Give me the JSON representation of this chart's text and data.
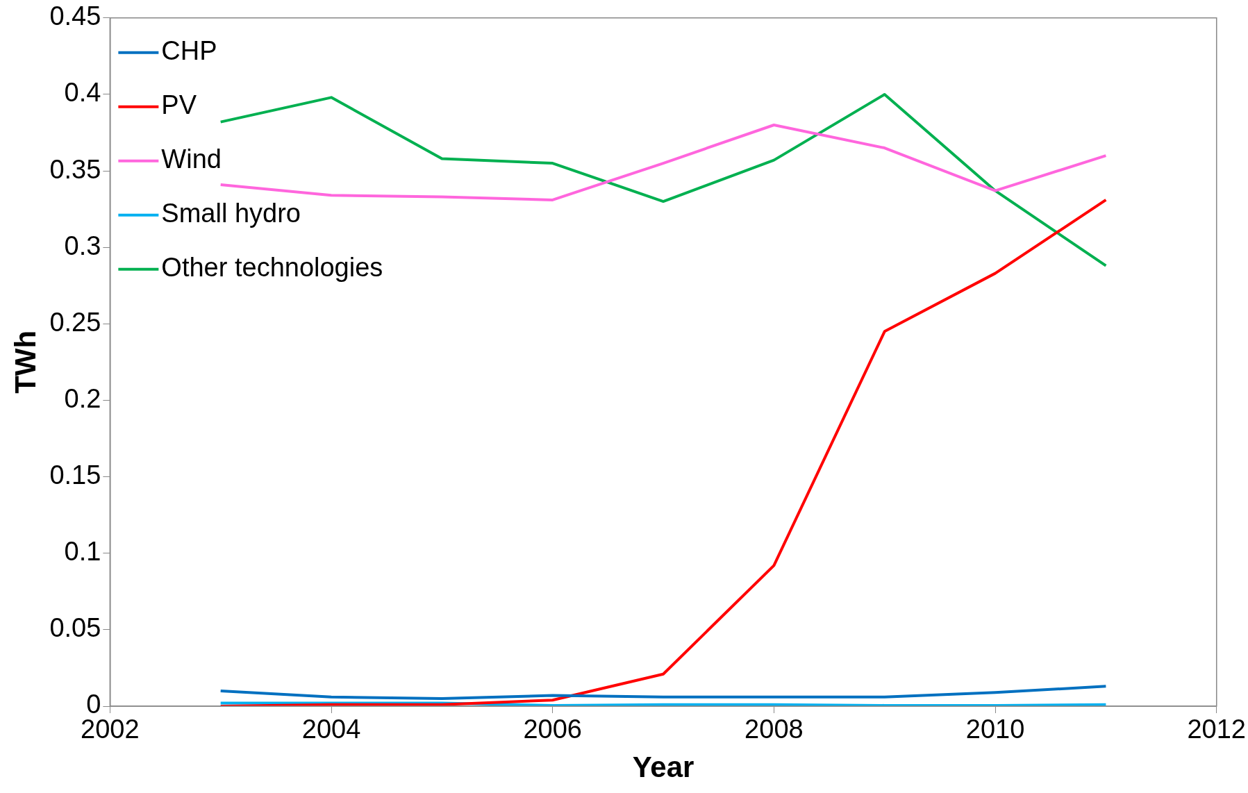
{
  "chart_data": {
    "type": "line",
    "xlabel": "Year",
    "ylabel": "TWh",
    "x": [
      2003,
      2004,
      2005,
      2006,
      2007,
      2008,
      2009,
      2010,
      2011
    ],
    "xlim": [
      2002,
      2012
    ],
    "xticks": [
      2002,
      2004,
      2006,
      2008,
      2010,
      2012
    ],
    "ylim": [
      0,
      0.45
    ],
    "yticks": [
      0,
      0.05,
      0.1,
      0.15,
      0.2,
      0.25,
      0.3,
      0.35,
      0.4,
      0.45
    ],
    "grid": false,
    "legend": "top left",
    "marker": "none",
    "line_style": "solid",
    "series": [
      {
        "name": "CHP",
        "color": "#0070c0",
        "values": [
          0.01,
          0.006,
          0.005,
          0.007,
          0.006,
          0.006,
          0.006,
          0.009,
          0.013
        ]
      },
      {
        "name": "PV",
        "color": "#ff0000",
        "values": [
          0,
          0.001,
          0.001,
          0.004,
          0.021,
          0.092,
          0.245,
          0.283,
          0.331
        ]
      },
      {
        "name": "Wind",
        "color": "#ff66dd",
        "values": [
          0.341,
          0.334,
          0.333,
          0.331,
          0.355,
          0.38,
          0.365,
          0.337,
          0.36
        ]
      },
      {
        "name": "Small hydro",
        "color": "#00b0f0",
        "values": [
          0.002,
          0.002,
          0.002,
          0.0005,
          0.001,
          0.001,
          0.0005,
          0.0005,
          0.001
        ]
      },
      {
        "name": "Other technologies",
        "color": "#00b050",
        "values": [
          0.382,
          0.398,
          0.358,
          0.355,
          0.33,
          0.357,
          0.4,
          0.337,
          0.288
        ]
      }
    ]
  }
}
